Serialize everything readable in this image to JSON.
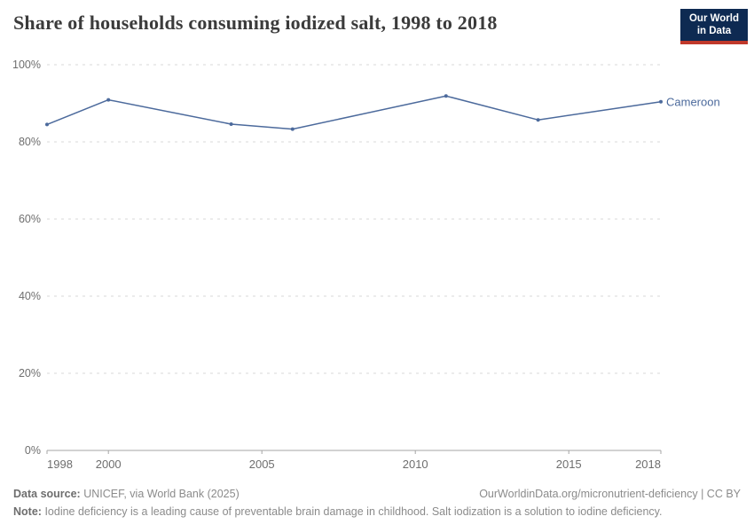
{
  "header": {
    "title": "Share of households consuming iodized salt, 1998 to 2018"
  },
  "logo": {
    "line1": "Our World",
    "line2": "in Data",
    "bg_color": "#0E2A52",
    "accent_color": "#C0392B"
  },
  "chart_data": {
    "type": "line",
    "title": "Share of households consuming iodized salt, 1998 to 2018",
    "x": [
      1998,
      2000,
      2004,
      2006,
      2011,
      2014,
      2018
    ],
    "series": [
      {
        "name": "Cameroon",
        "color": "#4C6A9C",
        "values": [
          84.5,
          90.9,
          84.6,
          83.3,
          91.9,
          85.7,
          90.4
        ]
      }
    ],
    "xlim": [
      1998,
      2018
    ],
    "ylim": [
      0,
      100
    ],
    "yticks": [
      {
        "value": 0,
        "label": "0%"
      },
      {
        "value": 20,
        "label": "20%"
      },
      {
        "value": 40,
        "label": "40%"
      },
      {
        "value": 60,
        "label": "60%"
      },
      {
        "value": 80,
        "label": "80%"
      },
      {
        "value": 100,
        "label": "100%"
      }
    ],
    "xticks": [
      {
        "value": 1998,
        "label": "1998"
      },
      {
        "value": 2000,
        "label": "2000"
      },
      {
        "value": 2005,
        "label": "2005"
      },
      {
        "value": 2010,
        "label": "2010"
      },
      {
        "value": 2015,
        "label": "2015"
      },
      {
        "value": 2018,
        "label": "2018"
      }
    ],
    "grid": "horizontal-dashed",
    "legend_position": "end-of-line-label"
  },
  "colors": {
    "line": "#4C6A9C",
    "grid": "#d9d9d9",
    "axis": "#a5a5a5",
    "tick_text": "#6e6e6e",
    "title_text": "#3b3b3b",
    "footer_text": "#8b8b8b"
  },
  "footer": {
    "datasource_label": "Data source:",
    "datasource": "UNICEF, via World Bank (2025)",
    "link": "OurWorldinData.org/micronutrient-deficiency | CC BY",
    "note_label": "Note:",
    "note": "Iodine deficiency is a leading cause of preventable brain damage in childhood. Salt iodization is a solution to iodine deficiency."
  }
}
